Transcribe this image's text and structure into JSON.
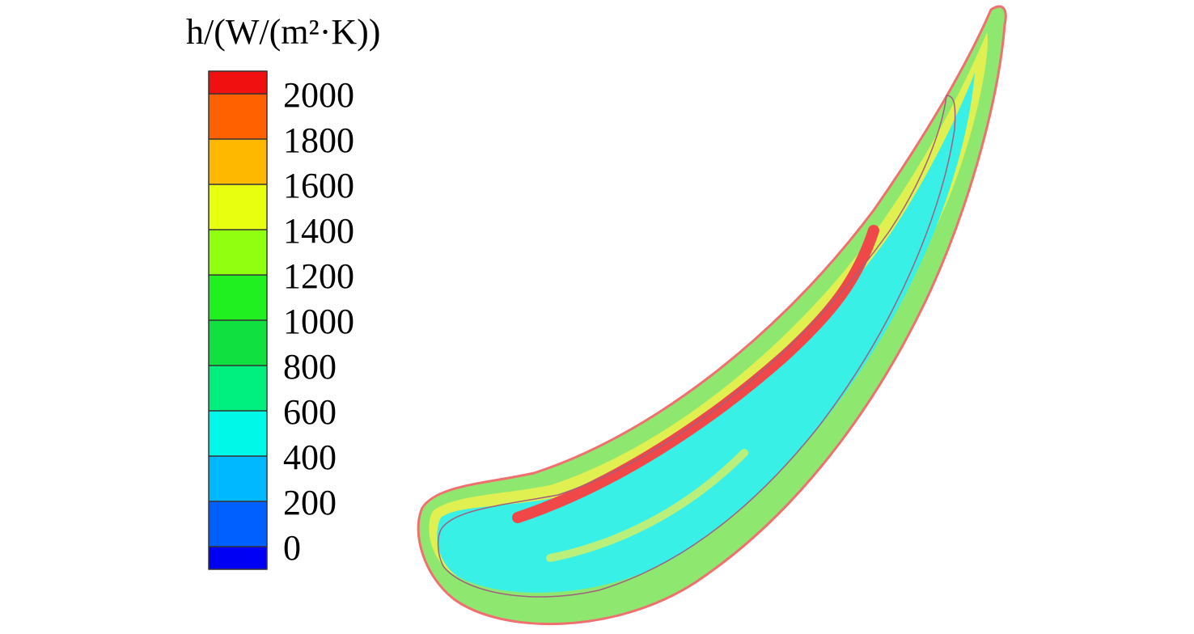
{
  "chart_data": {
    "type": "contour",
    "title": "h/(W/(m²·K))",
    "clim": [
      -100,
      2100
    ],
    "yticks": [
      0,
      200,
      400,
      600,
      800,
      1000,
      1200,
      1400,
      1600,
      1800,
      2000
    ],
    "colors": [
      "#0000f5",
      "#0060ff",
      "#00b8ff",
      "#00f8e8",
      "#00f080",
      "#10e040",
      "#20f020",
      "#90ff10",
      "#e8ff10",
      "#ffb800",
      "#ff6000",
      "#f01010"
    ]
  }
}
